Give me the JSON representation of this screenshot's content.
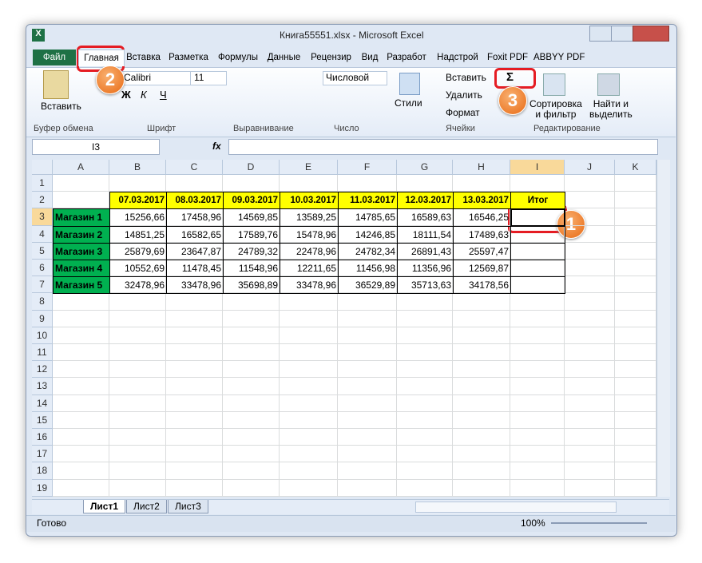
{
  "window": {
    "title": "Книга55551.xlsx - Microsoft Excel"
  },
  "ribbon": {
    "tabs": [
      "Файл",
      "Главная",
      "Вставка",
      "Разметка",
      "Формулы",
      "Данные",
      "Рецензир",
      "Вид",
      "Разработ",
      "Надстрой",
      "Foxit PDF",
      "ABBYY PDF"
    ],
    "groups": [
      "Буфер обмена",
      "Шрифт",
      "Выравнивание",
      "Число",
      "Ячейки",
      "Редактирование"
    ],
    "paste": "Вставить",
    "font_name": "Calibri",
    "font_size": "11",
    "bold": "Ж",
    "italic": "К",
    "underline": "Ч",
    "number_format": "Числовой",
    "styles": "Стили",
    "insert": "Вставить",
    "delete": "Удалить",
    "format": "Формат",
    "sum": "Σ",
    "sort": [
      "Сортировка",
      "и фильтр"
    ],
    "find": [
      "Найти и",
      "выделить"
    ]
  },
  "formula_bar": {
    "name_box": "I3",
    "fx": "fx"
  },
  "sheet": {
    "columns": [
      "A",
      "B",
      "C",
      "D",
      "E",
      "F",
      "G",
      "H",
      "I",
      "J",
      "K"
    ],
    "rows": [
      1,
      2,
      3,
      4,
      5,
      6,
      7,
      8,
      9,
      10,
      11,
      12,
      13,
      14,
      15,
      16,
      17,
      18,
      19
    ]
  },
  "table": {
    "header": [
      "07.03.2017",
      "08.03.2017",
      "09.03.2017",
      "10.03.2017",
      "11.03.2017",
      "12.03.2017",
      "13.03.2017",
      "Итог"
    ],
    "rows": [
      [
        "Магазин 1",
        "15256,66",
        "17458,96",
        "14569,85",
        "13589,25",
        "14785,65",
        "16589,63",
        "16546,25"
      ],
      [
        "Магазин 2",
        "14851,25",
        "16582,65",
        "17589,76",
        "15478,96",
        "14246,85",
        "18111,54",
        "17489,63"
      ],
      [
        "Магазин 3",
        "25879,69",
        "23647,87",
        "24789,32",
        "22478,96",
        "24782,34",
        "26891,43",
        "25597,47"
      ],
      [
        "Магазин 4",
        "10552,69",
        "11478,45",
        "11548,96",
        "12211,65",
        "11456,98",
        "11356,96",
        "12569,87"
      ],
      [
        "Магазин 5",
        "32478,96",
        "33478,96",
        "35698,89",
        "33478,96",
        "36529,89",
        "35713,63",
        "34178,56"
      ]
    ]
  },
  "sheet_tabs": [
    "Лист1",
    "Лист2",
    "Лист3"
  ],
  "status": {
    "ready": "Готово",
    "zoom": "100%"
  },
  "callouts": [
    "1",
    "2",
    "3"
  ]
}
